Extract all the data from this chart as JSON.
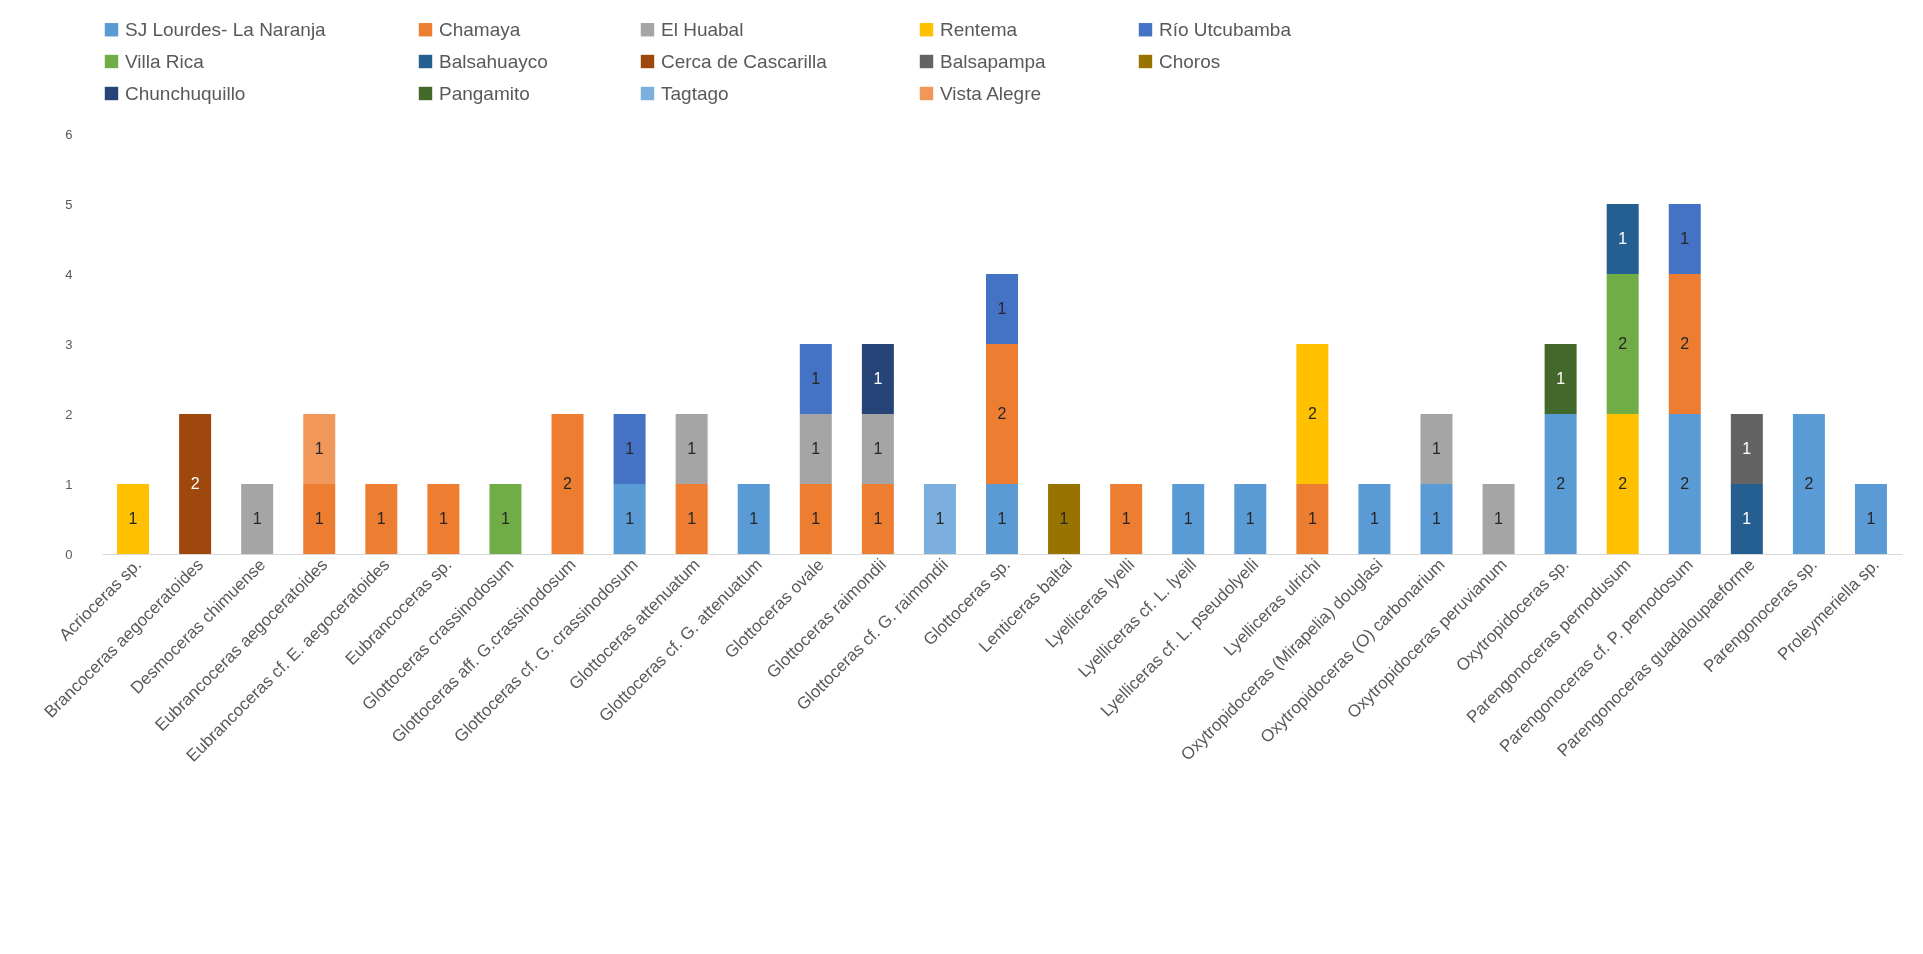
{
  "chart_data": {
    "type": "bar",
    "stacked": true,
    "data_labels": true,
    "grid": false,
    "legend": "top",
    "categories": [
      "Acrioceras sp.",
      "Brancoceras aegoceratoides",
      "Desmoceras chimuense",
      "Eubrancoceras aegoceratoides",
      "Eubrancoceras cf. E. aegoceratoides",
      "Eubrancoceras sp.",
      "Glottoceras crassinodosum",
      "Glottoceras aff. G.crassinodosum",
      "Glottoceras cf. G. crassinodosum",
      "Glottoceras attenuatum",
      "Glottoceras cf. G. attenuatum",
      "Glottoceras ovale",
      "Glottoceras raimondii",
      "Glottoceras cf. G. raimondii",
      "Glottoceras sp.",
      "Lenticeras baltai",
      "Lyelliceras lyelli",
      "Lyelliceras cf. L. lyeill",
      "Lyelliceras cf. L. pseudolyelli",
      "Lyelliceras ulrichi",
      "Oxytropidoceras (Mirapelia) douglasi",
      "Oxytropidoceras (O) carbonarium",
      "Oxytropidoceras peruvianum",
      "Oxytropidoceras sp.",
      "Parengonoceras pernodusum",
      "Parengonoceras cf. P. pernodosum",
      "Parengonoceras guadaloupaeforme",
      "Parengonoceras sp.",
      "Proleymeriella sp."
    ],
    "ylim": [
      0,
      6
    ],
    "yticks": [
      0,
      1,
      2,
      3,
      4,
      5,
      6
    ],
    "series": [
      {
        "name": "SJ Lourdes- La Naranja",
        "color": "#5b9bd5",
        "values": [
          null,
          null,
          null,
          null,
          null,
          null,
          null,
          null,
          1,
          null,
          1,
          null,
          null,
          null,
          1,
          null,
          null,
          1,
          1,
          null,
          1,
          1,
          null,
          2,
          null,
          2,
          null,
          2,
          1
        ]
      },
      {
        "name": "Chamaya",
        "color": "#ed7d31",
        "values": [
          null,
          null,
          null,
          1,
          1,
          1,
          null,
          2,
          null,
          1,
          null,
          1,
          1,
          null,
          2,
          null,
          1,
          null,
          null,
          1,
          null,
          null,
          null,
          null,
          null,
          2,
          null,
          null,
          null
        ]
      },
      {
        "name": "El Huabal",
        "color": "#a5a5a5",
        "values": [
          null,
          null,
          1,
          null,
          null,
          null,
          null,
          null,
          null,
          1,
          null,
          1,
          1,
          null,
          null,
          null,
          null,
          null,
          null,
          null,
          null,
          1,
          1,
          null,
          null,
          null,
          null,
          null,
          null
        ]
      },
      {
        "name": "Rentema",
        "color": "#ffc000",
        "values": [
          1,
          null,
          null,
          null,
          null,
          null,
          null,
          null,
          null,
          null,
          null,
          null,
          null,
          null,
          null,
          null,
          null,
          null,
          null,
          2,
          null,
          null,
          null,
          null,
          2,
          null,
          null,
          null,
          null
        ]
      },
      {
        "name": "Río Utcubamba",
        "color": "#4472c4",
        "values": [
          null,
          null,
          null,
          null,
          null,
          null,
          null,
          null,
          1,
          null,
          null,
          1,
          null,
          null,
          1,
          null,
          null,
          null,
          null,
          null,
          null,
          null,
          null,
          null,
          null,
          1,
          null,
          null,
          null
        ]
      },
      {
        "name": "Villa Rica",
        "color": "#70ad47",
        "values": [
          null,
          null,
          null,
          null,
          null,
          null,
          1,
          null,
          null,
          null,
          null,
          null,
          null,
          null,
          null,
          null,
          null,
          null,
          null,
          null,
          null,
          null,
          null,
          null,
          2,
          null,
          null,
          null,
          null
        ]
      },
      {
        "name": "Balsahuayco",
        "color": "#255e91",
        "values": [
          null,
          null,
          null,
          null,
          null,
          null,
          null,
          null,
          null,
          null,
          null,
          null,
          null,
          null,
          null,
          null,
          null,
          null,
          null,
          null,
          null,
          null,
          null,
          null,
          1,
          null,
          1,
          null,
          null
        ]
      },
      {
        "name": "Cerca de Cascarilla",
        "color": "#9e480e",
        "values": [
          null,
          2,
          null,
          null,
          null,
          null,
          null,
          null,
          null,
          null,
          null,
          null,
          null,
          null,
          null,
          null,
          null,
          null,
          null,
          null,
          null,
          null,
          null,
          null,
          null,
          null,
          null,
          null,
          null
        ]
      },
      {
        "name": "Balsapampa",
        "color": "#636363",
        "values": [
          null,
          null,
          null,
          null,
          null,
          null,
          null,
          null,
          null,
          null,
          null,
          null,
          null,
          null,
          null,
          null,
          null,
          null,
          null,
          null,
          null,
          null,
          null,
          null,
          null,
          null,
          1,
          null,
          null
        ]
      },
      {
        "name": "Choros",
        "color": "#997300",
        "values": [
          null,
          null,
          null,
          null,
          null,
          null,
          null,
          null,
          null,
          null,
          null,
          null,
          null,
          null,
          null,
          1,
          null,
          null,
          null,
          null,
          null,
          null,
          null,
          null,
          null,
          null,
          null,
          null,
          null
        ]
      },
      {
        "name": "Chunchuquillo",
        "color": "#264478",
        "values": [
          null,
          null,
          null,
          null,
          null,
          null,
          null,
          null,
          null,
          null,
          null,
          null,
          1,
          null,
          null,
          null,
          null,
          null,
          null,
          null,
          null,
          null,
          null,
          null,
          null,
          null,
          null,
          null,
          null
        ]
      },
      {
        "name": "Pangamito",
        "color": "#43682b",
        "values": [
          null,
          null,
          null,
          null,
          null,
          null,
          null,
          null,
          null,
          null,
          null,
          null,
          null,
          null,
          null,
          null,
          null,
          null,
          null,
          null,
          null,
          null,
          null,
          1,
          null,
          null,
          null,
          null,
          null
        ]
      },
      {
        "name": "Tagtago",
        "color": "#7cafdd",
        "values": [
          null,
          null,
          null,
          null,
          null,
          null,
          null,
          null,
          null,
          null,
          null,
          null,
          null,
          1,
          null,
          null,
          null,
          null,
          null,
          null,
          null,
          null,
          null,
          null,
          null,
          null,
          null,
          null,
          null
        ]
      },
      {
        "name": "Vista Alegre",
        "color": "#f1975a",
        "values": [
          null,
          null,
          null,
          1,
          null,
          null,
          null,
          null,
          null,
          null,
          null,
          null,
          null,
          null,
          null,
          null,
          null,
          null,
          null,
          null,
          null,
          null,
          null,
          null,
          null,
          null,
          null,
          null,
          null
        ]
      }
    ]
  }
}
